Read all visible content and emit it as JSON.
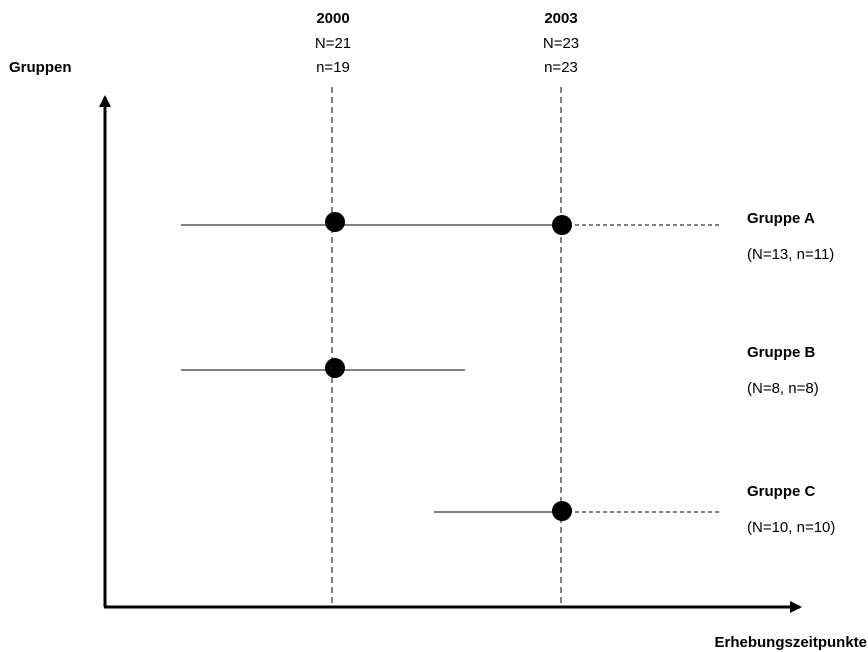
{
  "axes": {
    "y_label": "Gruppen",
    "x_label": "Erhebungszeitpunkte"
  },
  "time_points": [
    {
      "year": "2000",
      "N": "N=21",
      "n": "n=19"
    },
    {
      "year": "2003",
      "N": "N=23",
      "n": "n=23"
    }
  ],
  "groups": [
    {
      "name": "Gruppe A",
      "counts": "(N=13, n=11)",
      "points": [
        "2000",
        "2003"
      ],
      "continues": true
    },
    {
      "name": "Gruppe B",
      "counts": "(N=8, n=8)",
      "points": [
        "2000"
      ],
      "continues": false
    },
    {
      "name": "Gruppe C",
      "counts": "(N=10, n=10)",
      "points": [
        "2003"
      ],
      "continues": true
    }
  ]
}
